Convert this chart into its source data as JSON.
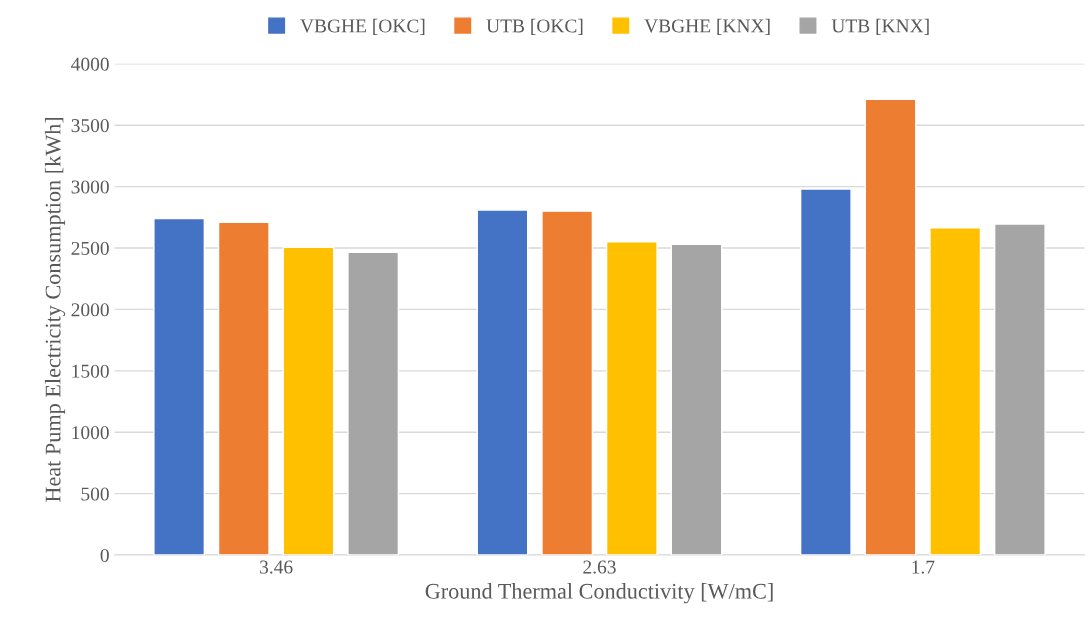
{
  "chart_data": {
    "type": "bar",
    "xlabel": "Ground Thermal Conductivity [W/mC]",
    "ylabel": "Heat Pump Electricity Consumption [kWh]",
    "categories": [
      "3.46",
      "2.63",
      "1.7"
    ],
    "series": [
      {
        "name": "VBGHE [OKC]",
        "color": "#4472c4",
        "values": [
          2740,
          2810,
          2980
        ]
      },
      {
        "name": "UTB [OKC]",
        "color": "#ed7d31",
        "values": [
          2710,
          2800,
          3710
        ]
      },
      {
        "name": "VBGHE [KNX]",
        "color": "#ffc000",
        "values": [
          2505,
          2550,
          2665
        ]
      },
      {
        "name": "UTB [KNX]",
        "color": "#a5a5a5",
        "values": [
          2465,
          2530,
          2695
        ]
      }
    ],
    "ylim": [
      0,
      4000
    ],
    "yticks": [
      0,
      500,
      1000,
      1500,
      2000,
      2500,
      3000,
      3500,
      4000
    ],
    "grid": "y",
    "legend": "top"
  }
}
